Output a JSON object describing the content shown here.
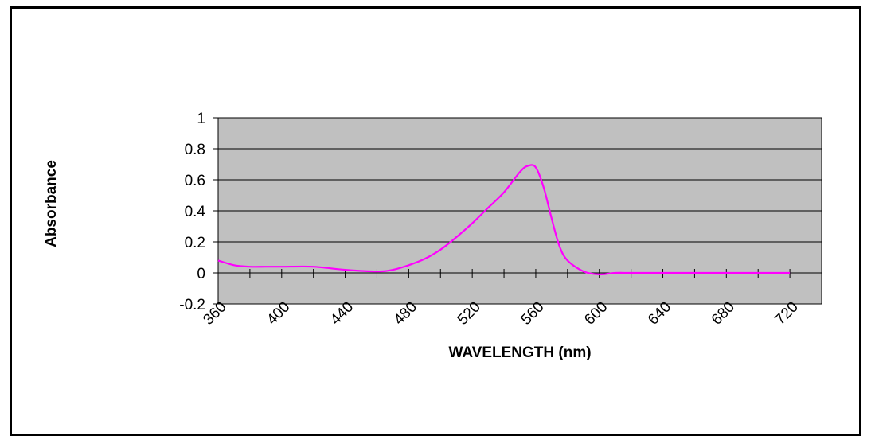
{
  "chart_data": {
    "type": "line",
    "title": "",
    "xlabel": "WAVELENGTH (nm)",
    "ylabel": "Absorbance",
    "xlim": [
      360,
      740
    ],
    "ylim": [
      -0.2,
      1
    ],
    "x_ticks": [
      360,
      400,
      440,
      480,
      520,
      560,
      600,
      640,
      680,
      720
    ],
    "y_ticks": [
      -0.2,
      0,
      0.2,
      0.4,
      0.6,
      0.8,
      1
    ],
    "y_tick_labels": [
      "-0.2",
      "0",
      "0.2",
      "0.4",
      "0.6",
      "0.8",
      "1"
    ],
    "grid": "horizontal",
    "plot_background": "#c0c0c0",
    "series": [
      {
        "color": "#ff00ff",
        "x": [
          360,
          370,
          380,
          390,
          400,
          420,
          440,
          460,
          470,
          480,
          490,
          500,
          510,
          520,
          530,
          540,
          550,
          555,
          560,
          565,
          570,
          575,
          580,
          590,
          600,
          610,
          620,
          640,
          660,
          680,
          700,
          720
        ],
        "y": [
          0.08,
          0.05,
          0.04,
          0.04,
          0.04,
          0.04,
          0.02,
          0.01,
          0.02,
          0.05,
          0.09,
          0.15,
          0.23,
          0.32,
          0.42,
          0.52,
          0.65,
          0.69,
          0.68,
          0.55,
          0.35,
          0.17,
          0.08,
          0.01,
          -0.01,
          0.0,
          0.0,
          0.0,
          0.0,
          0.0,
          0.0,
          0.0
        ]
      }
    ]
  }
}
